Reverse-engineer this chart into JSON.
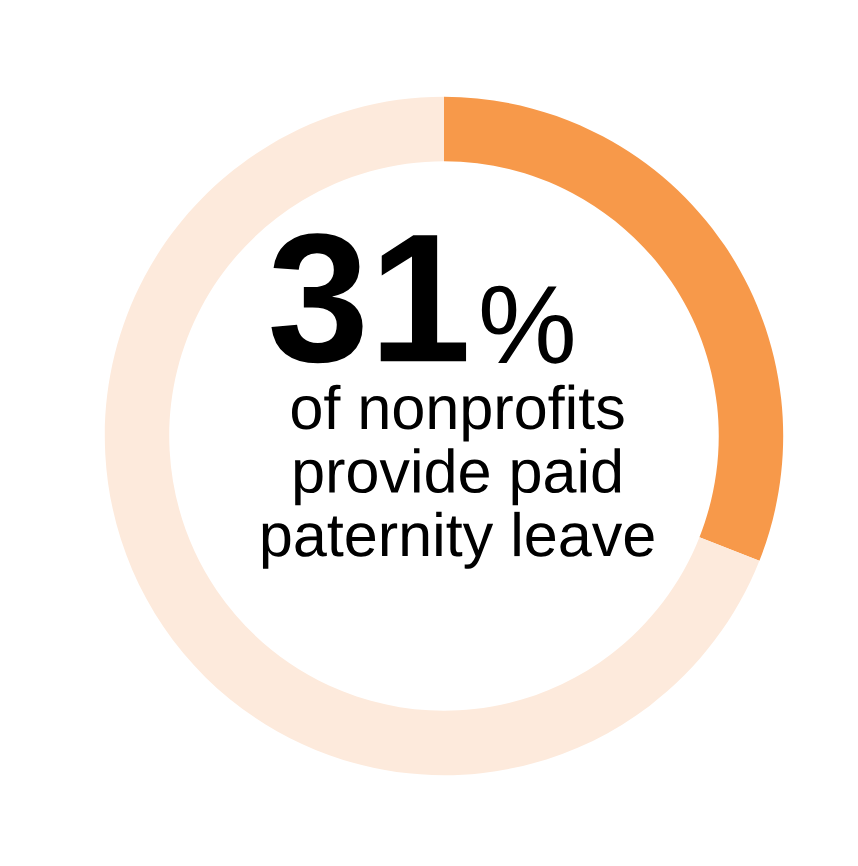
{
  "chart_data": {
    "type": "donut",
    "categories": [
      null,
      null
    ],
    "values": [
      31,
      69
    ],
    "colors": [
      "#f7994a",
      "#fdeadc"
    ],
    "value_labels": [
      "31%",
      null
    ],
    "annotations": [
      "of nonprofits\nprovide paid\npaternity leave"
    ],
    "legend": false
  }
}
